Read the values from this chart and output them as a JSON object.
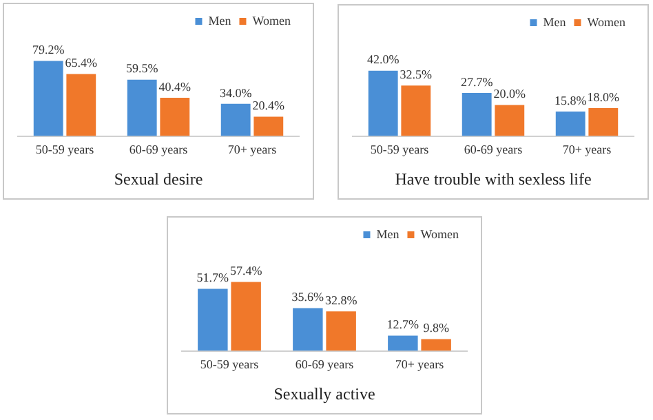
{
  "chart_data": [
    {
      "type": "bar",
      "title": "Sexual desire",
      "categories": [
        "50-59 years",
        "60-69 years",
        "70+ years"
      ],
      "legend": "top right",
      "grid": false,
      "series": [
        {
          "name": "Men",
          "color": "#4a8fd6",
          "values": [
            79.2,
            59.5,
            34.0
          ],
          "value_labels": [
            "79.2%",
            "59.5%",
            "34.0%"
          ]
        },
        {
          "name": "Women",
          "color": "#f0782a",
          "values": [
            65.4,
            40.4,
            20.4
          ],
          "value_labels": [
            "65.4%",
            "40.4%",
            "20.4%"
          ]
        }
      ]
    },
    {
      "type": "bar",
      "title": "Have trouble with sexless life",
      "categories": [
        "50-59 years",
        "60-69 years",
        "70+ years"
      ],
      "legend": "top right",
      "grid": false,
      "series": [
        {
          "name": "Men",
          "color": "#4a8fd6",
          "values": [
            42.0,
            27.7,
            15.8
          ],
          "value_labels": [
            "42.0%",
            "27.7%",
            "15.8%"
          ]
        },
        {
          "name": "Women",
          "color": "#f0782a",
          "values": [
            32.5,
            20.0,
            18.0
          ],
          "value_labels": [
            "32.5%",
            "20.0%",
            "18.0%"
          ]
        }
      ]
    },
    {
      "type": "bar",
      "title": "Sexually active",
      "categories": [
        "50-59 years",
        "60-69 years",
        "70+ years"
      ],
      "legend": "top right",
      "grid": false,
      "series": [
        {
          "name": "Men",
          "color": "#4a8fd6",
          "values": [
            51.7,
            35.6,
            12.7
          ],
          "value_labels": [
            "51.7%",
            "35.6%",
            "12.7%"
          ]
        },
        {
          "name": "Women",
          "color": "#f0782a",
          "values": [
            57.4,
            32.8,
            9.8
          ],
          "value_labels": [
            "57.4%",
            "32.8%",
            "9.8%"
          ]
        }
      ]
    }
  ]
}
